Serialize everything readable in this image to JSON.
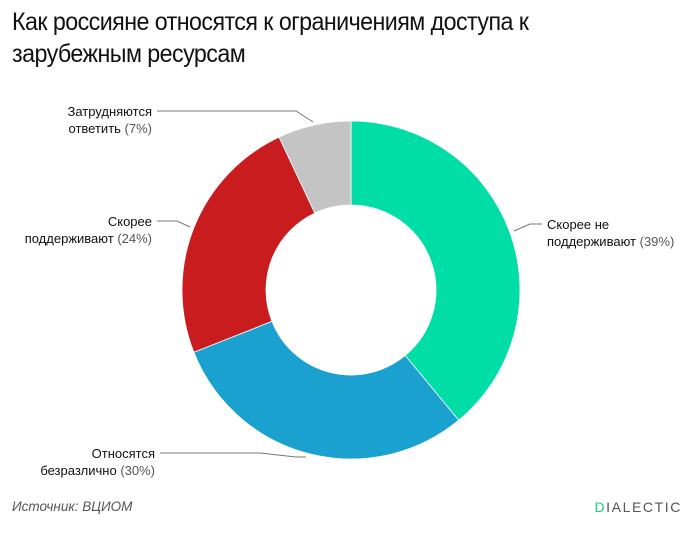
{
  "header": {
    "title": "Как россияне относятся к ограничениям доступа к зарубежным ресурсам"
  },
  "footer": {
    "source": "Источник: ВЦИОМ",
    "brand_first_letter": "D",
    "brand_rest": "IALECTIC",
    "brand_accent_color": "#19d47e"
  },
  "labels": {
    "hard_to_say": {
      "line1": "Затрудняются",
      "line2": "ответить",
      "pct": "(7%)"
    },
    "rather_support": {
      "line1": "Скорее",
      "line2": "поддерживают",
      "pct": "(24%)"
    },
    "rather_not_support": {
      "line1": "Скорее не",
      "line2": "поддерживают",
      "pct": "(39%)"
    },
    "indifferent": {
      "line1": "Относятся",
      "line2": "безразлично",
      "pct": "(30%)"
    }
  },
  "chart_data": {
    "type": "pie",
    "variant": "donut",
    "title": "Как россияне относятся к ограничениям доступа к зарубежным ресурсам",
    "unit": "%",
    "start_angle": "top, clockwise",
    "categories": [
      "Скорее не поддерживают",
      "Относятся безразлично",
      "Скорее поддерживают",
      "Затрудняются ответить"
    ],
    "values": [
      39,
      30,
      24,
      7
    ],
    "colors": [
      "#00DDA6",
      "#1AA1D0",
      "#C81C1E",
      "#C4C4C4"
    ],
    "source": "ВЦИОМ",
    "legend": "none (direct labels with leader lines)"
  }
}
